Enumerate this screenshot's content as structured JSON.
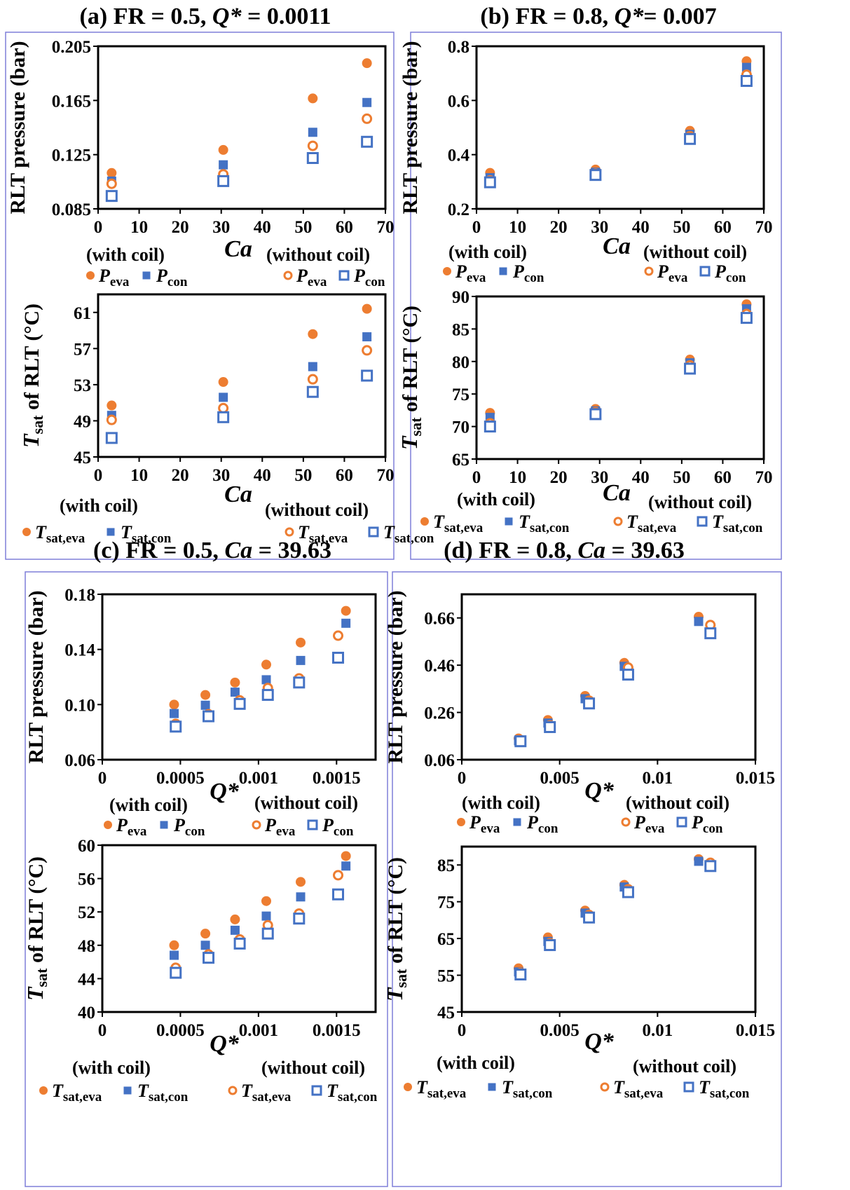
{
  "colors": {
    "eva": "#ED7D31",
    "con": "#4472C4",
    "frame": "#7F7FD8"
  },
  "legend_text": {
    "with_coil": "(with coil)",
    "without_coil": "(without coil)",
    "P": "P",
    "T": "T",
    "eva": "eva",
    "con": "con",
    "sat_eva": "sat,eva",
    "sat_con": "sat,con"
  },
  "chart_data": [
    {
      "panel": "a",
      "type": "scatter",
      "title": {
        "prefix": "(a) FR = 0.5, ",
        "var": "Q*",
        "suffix": " = 0.0011"
      },
      "xlabel": "Ca",
      "ylabel": "RLT pressure (bar)",
      "xlim": [
        0,
        70
      ],
      "ylim": [
        0.085,
        0.205
      ],
      "xticks": [
        "0",
        "10",
        "20",
        "30",
        "40",
        "50",
        "60",
        "70"
      ],
      "yticks": [
        "0.085",
        "0.125",
        "0.165",
        "0.205"
      ],
      "series": [
        {
          "name": "P_eva (with coil)",
          "marker": "filled-circle",
          "x": [
            3.3,
            30.5,
            52.3,
            65.5
          ],
          "y": [
            0.1115,
            0.1285,
            0.1665,
            0.1925
          ]
        },
        {
          "name": "P_con (with coil)",
          "marker": "filled-square",
          "x": [
            3.3,
            30.5,
            52.3,
            65.5
          ],
          "y": [
            0.1055,
            0.1175,
            0.1415,
            0.1635
          ]
        },
        {
          "name": "P_eva (without coil)",
          "marker": "open-circle",
          "x": [
            3.3,
            30.5,
            52.3,
            65.5
          ],
          "y": [
            0.1035,
            0.1105,
            0.1315,
            0.1515
          ]
        },
        {
          "name": "P_con (without coil)",
          "marker": "open-square",
          "x": [
            3.3,
            30.5,
            52.3,
            65.5
          ],
          "y": [
            0.0945,
            0.1055,
            0.1225,
            0.1345
          ]
        }
      ]
    },
    {
      "panel": "a",
      "type": "scatter",
      "xlabel": "Ca",
      "ylabel": "T_sat of RLT (°C)",
      "xlim": [
        0,
        70
      ],
      "ylim": [
        45,
        63
      ],
      "xticks": [
        "0",
        "10",
        "20",
        "30",
        "40",
        "50",
        "60",
        "70"
      ],
      "yticks": [
        "45",
        "49",
        "53",
        "57",
        "61"
      ],
      "series": [
        {
          "name": "T_sat,eva (with coil)",
          "marker": "filled-circle",
          "x": [
            3.3,
            30.5,
            52.3,
            65.5
          ],
          "y": [
            50.7,
            53.3,
            58.6,
            61.4
          ]
        },
        {
          "name": "T_sat,con (with coil)",
          "marker": "filled-square",
          "x": [
            3.3,
            30.5,
            52.3,
            65.5
          ],
          "y": [
            49.6,
            51.6,
            55.0,
            58.3
          ]
        },
        {
          "name": "T_sat,eva (without coil)",
          "marker": "open-circle",
          "x": [
            3.3,
            30.5,
            52.3,
            65.5
          ],
          "y": [
            49.1,
            50.4,
            53.6,
            56.8
          ]
        },
        {
          "name": "T_sat,con (without coil)",
          "marker": "open-square",
          "x": [
            3.3,
            30.5,
            52.3,
            65.5
          ],
          "y": [
            47.1,
            49.4,
            52.2,
            54.0
          ]
        }
      ]
    },
    {
      "panel": "b",
      "type": "scatter",
      "title": {
        "prefix": "(b) FR = 0.8, ",
        "var": "Q*",
        "suffix": "= 0.007"
      },
      "xlabel": "Ca",
      "ylabel": "RLT pressure (bar)",
      "xlim": [
        0,
        70
      ],
      "ylim": [
        0.2,
        0.8
      ],
      "xticks": [
        "0",
        "10",
        "20",
        "30",
        "40",
        "50",
        "60",
        "70"
      ],
      "yticks": [
        "0.2",
        "0.4",
        "0.6",
        "0.8"
      ],
      "series": [
        {
          "name": "P_eva (with coil)",
          "marker": "filled-circle",
          "x": [
            3.3,
            29.0,
            52.0,
            65.8
          ],
          "y": [
            0.333,
            0.345,
            0.488,
            0.745
          ]
        },
        {
          "name": "P_con (with coil)",
          "marker": "filled-square",
          "x": [
            3.3,
            29.0,
            52.0,
            65.8
          ],
          "y": [
            0.315,
            0.335,
            0.475,
            0.722
          ]
        },
        {
          "name": "P_eva (without coil)",
          "marker": "open-circle",
          "x": [
            3.3,
            29.0,
            52.0,
            65.8
          ],
          "y": [
            0.305,
            0.33,
            0.468,
            0.695
          ]
        },
        {
          "name": "P_con (without coil)",
          "marker": "open-square",
          "x": [
            3.3,
            29.0,
            52.0,
            65.8
          ],
          "y": [
            0.298,
            0.325,
            0.458,
            0.672
          ]
        }
      ]
    },
    {
      "panel": "b",
      "type": "scatter",
      "xlabel": "Ca",
      "ylabel": "T_sat of RLT (°C)",
      "xlim": [
        0,
        70
      ],
      "ylim": [
        65,
        90
      ],
      "xticks": [
        "0",
        "10",
        "20",
        "30",
        "40",
        "50",
        "60",
        "70"
      ],
      "yticks": [
        "65",
        "70",
        "75",
        "80",
        "85",
        "90"
      ],
      "series": [
        {
          "name": "T_sat,eva (with coil)",
          "marker": "filled-circle",
          "x": [
            3.3,
            29.0,
            52.0,
            65.8
          ],
          "y": [
            72.1,
            72.7,
            80.3,
            88.8
          ]
        },
        {
          "name": "T_sat,con (with coil)",
          "marker": "filled-square",
          "x": [
            3.3,
            29.0,
            52.0,
            65.8
          ],
          "y": [
            71.4,
            72.4,
            79.8,
            88.1
          ]
        },
        {
          "name": "T_sat,eva (without coil)",
          "marker": "open-circle",
          "x": [
            3.3,
            29.0,
            52.0,
            65.8
          ],
          "y": [
            70.5,
            72.2,
            79.4,
            87.3
          ]
        },
        {
          "name": "T_sat,con (without coil)",
          "marker": "open-square",
          "x": [
            3.3,
            29.0,
            52.0,
            65.8
          ],
          "y": [
            70.0,
            71.9,
            78.9,
            86.7
          ]
        }
      ]
    },
    {
      "panel": "c",
      "type": "scatter",
      "title": {
        "prefix": "(c) FR = 0.5, ",
        "var": "Ca",
        "suffix": " = 39.63"
      },
      "xlabel": "Q*",
      "ylabel": "RLT pressure (bar)",
      "xlim": [
        0,
        0.00175
      ],
      "ylim": [
        0.06,
        0.18
      ],
      "xticks": [
        "0",
        "0.0005",
        "0.001",
        "0.0015"
      ],
      "yticks": [
        "0.06",
        "0.10",
        "0.14",
        "0.18"
      ],
      "series": [
        {
          "name": "P_eva (with coil)",
          "marker": "filled-circle",
          "x": [
            0.00046,
            0.00066,
            0.00085,
            0.00105,
            0.00127,
            0.00156
          ],
          "y": [
            0.1,
            0.107,
            0.116,
            0.129,
            0.145,
            0.168
          ]
        },
        {
          "name": "P_con (with coil)",
          "marker": "filled-square",
          "x": [
            0.00046,
            0.00066,
            0.00085,
            0.00105,
            0.00127,
            0.00156
          ],
          "y": [
            0.0935,
            0.0995,
            0.109,
            0.118,
            0.132,
            0.159
          ]
        },
        {
          "name": "P_eva (without coil)",
          "marker": "open-circle",
          "x": [
            0.00047,
            0.00068,
            0.00088,
            0.00106,
            0.00126,
            0.00151
          ],
          "y": [
            0.086,
            0.093,
            0.103,
            0.112,
            0.119,
            0.15
          ]
        },
        {
          "name": "P_con (without coil)",
          "marker": "open-square",
          "x": [
            0.00047,
            0.00068,
            0.00088,
            0.00106,
            0.00126,
            0.00151
          ],
          "y": [
            0.084,
            0.0915,
            0.1005,
            0.107,
            0.116,
            0.134
          ]
        }
      ]
    },
    {
      "panel": "c",
      "type": "scatter",
      "xlabel": "Q*",
      "ylabel": "T_sat of RLT (°C)",
      "xlim": [
        0,
        0.00175
      ],
      "ylim": [
        40,
        60
      ],
      "xticks": [
        "0",
        "0.0005",
        "0.001",
        "0.0015"
      ],
      "yticks": [
        "40",
        "44",
        "48",
        "52",
        "56",
        "60"
      ],
      "series": [
        {
          "name": "T_sat,eva (with coil)",
          "marker": "filled-circle",
          "x": [
            0.00046,
            0.00066,
            0.00085,
            0.00105,
            0.00127,
            0.00156
          ],
          "y": [
            48.0,
            49.4,
            51.1,
            53.3,
            55.6,
            58.7
          ]
        },
        {
          "name": "T_sat,con (with coil)",
          "marker": "filled-square",
          "x": [
            0.00046,
            0.00066,
            0.00085,
            0.00105,
            0.00127,
            0.00156
          ],
          "y": [
            46.8,
            48.0,
            49.8,
            51.5,
            53.8,
            57.5
          ]
        },
        {
          "name": "T_sat,eva (without coil)",
          "marker": "open-circle",
          "x": [
            0.00047,
            0.00068,
            0.00088,
            0.00106,
            0.00126,
            0.00151
          ],
          "y": [
            45.3,
            46.9,
            48.7,
            50.4,
            51.8,
            56.4
          ]
        },
        {
          "name": "T_sat,con (without coil)",
          "marker": "open-square",
          "x": [
            0.00047,
            0.00068,
            0.00088,
            0.00106,
            0.00126,
            0.00151
          ],
          "y": [
            44.7,
            46.5,
            48.2,
            49.4,
            51.2,
            54.1
          ]
        }
      ]
    },
    {
      "panel": "d",
      "type": "scatter",
      "title": {
        "prefix": "(d) FR = 0.8, ",
        "var": "Ca",
        "suffix": " = 39.63"
      },
      "xlabel": "Q*",
      "ylabel": "RLT pressure (bar)",
      "xlim": [
        0,
        0.015
      ],
      "ylim": [
        0.06,
        0.76
      ],
      "xticks": [
        "0",
        "0.005",
        "0.01",
        "0.015"
      ],
      "yticks": [
        "0.06",
        "0.26",
        "0.46",
        "0.66"
      ],
      "series": [
        {
          "name": "P_eva (with coil)",
          "marker": "filled-circle",
          "x": [
            0.0029,
            0.0044,
            0.0063,
            0.0083,
            0.0121
          ],
          "y": [
            0.15,
            0.228,
            0.33,
            0.47,
            0.665
          ]
        },
        {
          "name": "P_con (with coil)",
          "marker": "filled-square",
          "x": [
            0.0029,
            0.0044,
            0.0063,
            0.0083,
            0.0121
          ],
          "y": [
            0.14,
            0.215,
            0.318,
            0.455,
            0.645
          ]
        },
        {
          "name": "P_eva (without coil)",
          "marker": "open-circle",
          "x": [
            0.003,
            0.0045,
            0.0065,
            0.0085,
            0.0127
          ],
          "y": [
            0.143,
            0.205,
            0.31,
            0.45,
            0.63
          ]
        },
        {
          "name": "P_con (without coil)",
          "marker": "open-square",
          "x": [
            0.003,
            0.0045,
            0.0065,
            0.0085,
            0.0127
          ],
          "y": [
            0.138,
            0.198,
            0.298,
            0.42,
            0.595
          ]
        }
      ]
    },
    {
      "panel": "d",
      "type": "scatter",
      "xlabel": "Q*",
      "ylabel": "T_sat of RLT (°C)",
      "xlim": [
        0,
        0.015
      ],
      "ylim": [
        45,
        90
      ],
      "xticks": [
        "0",
        "0.005",
        "0.01",
        "0.015"
      ],
      "yticks": [
        "45",
        "55",
        "65",
        "75",
        "85"
      ],
      "series": [
        {
          "name": "T_sat,eva (with coil)",
          "marker": "filled-circle",
          "x": [
            0.0029,
            0.0044,
            0.0063,
            0.0083,
            0.0121
          ],
          "y": [
            56.9,
            65.3,
            72.6,
            79.6,
            86.6
          ]
        },
        {
          "name": "T_sat,con (with coil)",
          "marker": "filled-square",
          "x": [
            0.0029,
            0.0044,
            0.0063,
            0.0083,
            0.0121
          ],
          "y": [
            55.9,
            64.2,
            71.9,
            79.0,
            86.0
          ]
        },
        {
          "name": "T_sat,eva (without coil)",
          "marker": "open-circle",
          "x": [
            0.003,
            0.0045,
            0.0065,
            0.0085,
            0.0127
          ],
          "y": [
            55.6,
            63.7,
            71.4,
            78.4,
            85.6
          ]
        },
        {
          "name": "T_sat,con (without coil)",
          "marker": "open-square",
          "x": [
            0.003,
            0.0045,
            0.0065,
            0.0085,
            0.0127
          ],
          "y": [
            55.2,
            63.2,
            70.7,
            77.6,
            84.7
          ]
        }
      ]
    }
  ]
}
